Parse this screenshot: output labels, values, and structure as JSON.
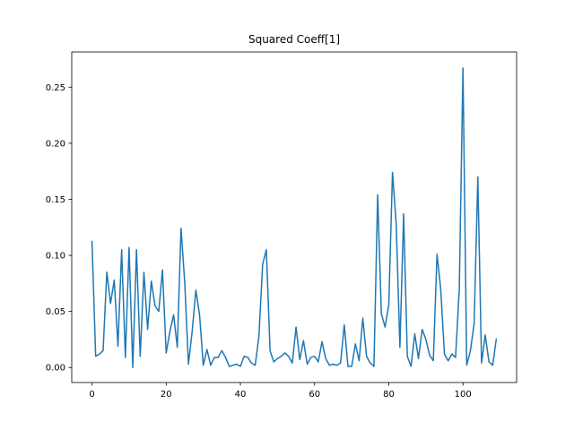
{
  "chart_data": {
    "type": "line",
    "title": "Squared Coeff[1]",
    "xlabel": "",
    "ylabel": "",
    "xlim": [
      -5.45,
      114.45
    ],
    "ylim": [
      -0.0134,
      0.2814
    ],
    "xticks": [
      0,
      20,
      40,
      60,
      80,
      100
    ],
    "yticks": [
      0.0,
      0.05,
      0.1,
      0.15,
      0.2,
      0.25
    ],
    "ytick_labels": [
      "0.00",
      "0.05",
      "0.10",
      "0.15",
      "0.20",
      "0.25"
    ],
    "grid": false,
    "series": [
      {
        "color": "#1f77b4",
        "x": [
          0,
          1,
          2,
          3,
          4,
          5,
          6,
          7,
          8,
          9,
          10,
          11,
          12,
          13,
          14,
          15,
          16,
          17,
          18,
          19,
          20,
          21,
          22,
          23,
          24,
          25,
          26,
          27,
          28,
          29,
          30,
          31,
          32,
          33,
          34,
          35,
          36,
          37,
          38,
          39,
          40,
          41,
          42,
          43,
          44,
          45,
          46,
          47,
          48,
          49,
          50,
          51,
          52,
          53,
          54,
          55,
          56,
          57,
          58,
          59,
          60,
          61,
          62,
          63,
          64,
          65,
          66,
          67,
          68,
          69,
          70,
          71,
          72,
          73,
          74,
          75,
          76,
          77,
          78,
          79,
          80,
          81,
          82,
          83,
          84,
          85,
          86,
          87,
          88,
          89,
          90,
          91,
          92,
          93,
          94,
          95,
          96,
          97,
          98,
          99,
          100,
          101,
          102,
          103,
          104,
          105,
          106,
          107,
          108,
          109
        ],
        "values": [
          0.113,
          0.01,
          0.012,
          0.015,
          0.085,
          0.057,
          0.078,
          0.019,
          0.105,
          0.009,
          0.107,
          0.0,
          0.105,
          0.01,
          0.085,
          0.034,
          0.077,
          0.055,
          0.05,
          0.087,
          0.013,
          0.032,
          0.047,
          0.018,
          0.124,
          0.076,
          0.003,
          0.032,
          0.069,
          0.047,
          0.002,
          0.016,
          0.002,
          0.009,
          0.009,
          0.015,
          0.009,
          0.001,
          0.002,
          0.003,
          0.001,
          0.01,
          0.009,
          0.004,
          0.002,
          0.028,
          0.092,
          0.105,
          0.015,
          0.005,
          0.008,
          0.01,
          0.013,
          0.01,
          0.004,
          0.036,
          0.007,
          0.024,
          0.003,
          0.009,
          0.01,
          0.005,
          0.023,
          0.008,
          0.002,
          0.003,
          0.002,
          0.004,
          0.038,
          0.001,
          0.001,
          0.021,
          0.006,
          0.044,
          0.01,
          0.004,
          0.001,
          0.154,
          0.048,
          0.036,
          0.056,
          0.174,
          0.128,
          0.018,
          0.137,
          0.01,
          0.001,
          0.03,
          0.008,
          0.034,
          0.025,
          0.011,
          0.006,
          0.101,
          0.07,
          0.012,
          0.006,
          0.012,
          0.009,
          0.07,
          0.267,
          0.002,
          0.015,
          0.039,
          0.17,
          0.004,
          0.029,
          0.005,
          0.002,
          0.026
        ]
      }
    ]
  }
}
